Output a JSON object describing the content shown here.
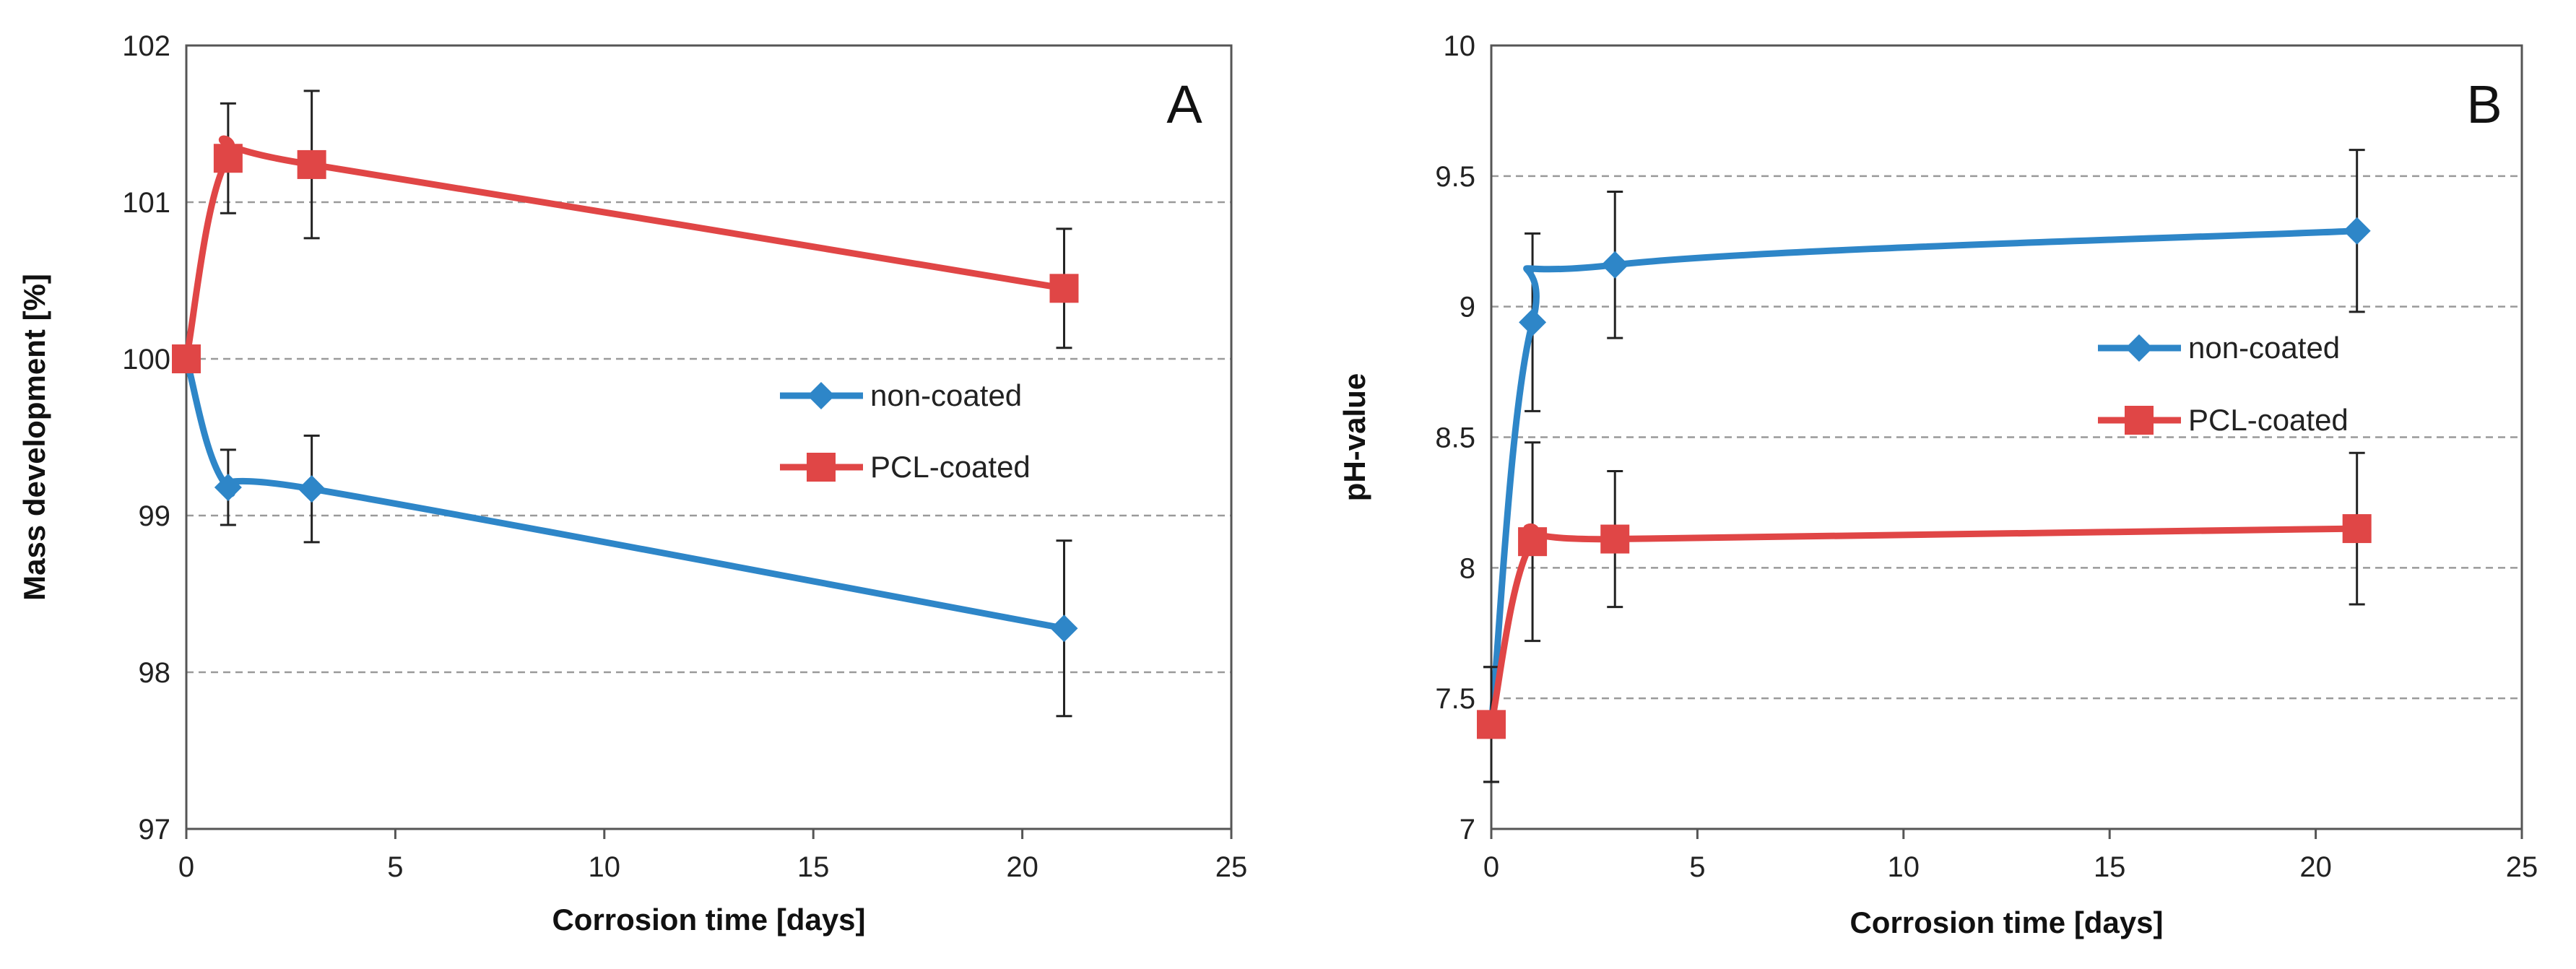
{
  "chart_data": [
    {
      "type": "line",
      "panel_label": "A",
      "xlabel": "Corrosion time [days]",
      "ylabel": "Mass development [%]",
      "xlim": [
        0,
        25
      ],
      "ylim": [
        97,
        102
      ],
      "x_ticks": [
        "0",
        "5",
        "10",
        "15",
        "20",
        "25"
      ],
      "y_ticks": [
        "97",
        "98",
        "99",
        "100",
        "101",
        "102"
      ],
      "grid": "horizontal dashed",
      "legend_position": "center-right",
      "series": [
        {
          "name": "non-coated",
          "color": "#2E86C8",
          "marker": "diamond",
          "x": [
            0,
            1,
            3,
            21
          ],
          "y": [
            100.0,
            99.18,
            99.17,
            98.28
          ],
          "error": [
            0,
            0.24,
            0.34,
            0.56
          ]
        },
        {
          "name": "PCL-coated",
          "color": "#E04646",
          "marker": "square",
          "x": [
            0,
            1,
            3,
            21
          ],
          "y": [
            100.0,
            101.28,
            101.24,
            100.45
          ],
          "error": [
            0,
            0.35,
            0.47,
            0.38
          ]
        }
      ]
    },
    {
      "type": "line",
      "panel_label": "B",
      "xlabel": "Corrosion time [days]",
      "ylabel": "pH-value",
      "xlim": [
        0,
        25
      ],
      "ylim": [
        7,
        10
      ],
      "x_ticks": [
        "0",
        "5",
        "10",
        "15",
        "20",
        "25"
      ],
      "y_ticks": [
        "7",
        "7.5",
        "8",
        "8.5",
        "9",
        "9.5",
        "10"
      ],
      "grid": "horizontal dashed",
      "legend_position": "center-right",
      "series": [
        {
          "name": "non-coated",
          "color": "#2E86C8",
          "marker": "diamond",
          "x": [
            0,
            1,
            3,
            21
          ],
          "y": [
            7.4,
            8.94,
            9.16,
            9.29
          ],
          "error": [
            0.22,
            0.34,
            0.28,
            0.31
          ]
        },
        {
          "name": "PCL-coated",
          "color": "#E04646",
          "marker": "square",
          "x": [
            0,
            1,
            3,
            21
          ],
          "y": [
            7.4,
            8.1,
            8.11,
            8.15
          ],
          "error": [
            0.22,
            0.38,
            0.26,
            0.29
          ]
        }
      ]
    }
  ]
}
